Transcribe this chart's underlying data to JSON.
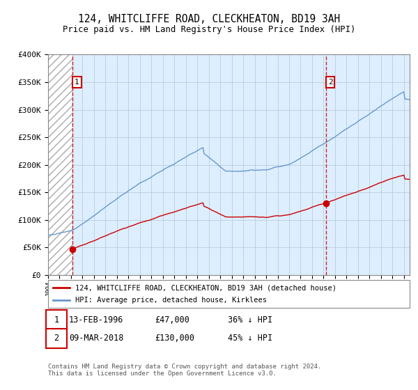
{
  "title1": "124, WHITCLIFFE ROAD, CLECKHEATON, BD19 3AH",
  "title2": "Price paid vs. HM Land Registry's House Price Index (HPI)",
  "ylim": [
    0,
    400000
  ],
  "yticks": [
    0,
    50000,
    100000,
    150000,
    200000,
    250000,
    300000,
    350000,
    400000
  ],
  "ytick_labels": [
    "£0",
    "£50K",
    "£100K",
    "£150K",
    "£200K",
    "£250K",
    "£300K",
    "£350K",
    "£400K"
  ],
  "xlim_start": 1994.0,
  "xlim_end": 2025.5,
  "sale1_x": 1996.12,
  "sale1_y": 47000,
  "sale1_label": "1",
  "sale2_x": 2018.19,
  "sale2_y": 130000,
  "sale2_label": "2",
  "hatch_end": 1996.12,
  "legend_line1": "124, WHITCLIFFE ROAD, CLECKHEATON, BD19 3AH (detached house)",
  "legend_line2": "HPI: Average price, detached house, Kirklees",
  "note1_label": "1",
  "note1_date": "13-FEB-1996",
  "note1_price": "£47,000",
  "note1_hpi": "36% ↓ HPI",
  "note2_label": "2",
  "note2_date": "09-MAR-2018",
  "note2_price": "£130,000",
  "note2_hpi": "45% ↓ HPI",
  "footer": "Contains HM Land Registry data © Crown copyright and database right 2024.\nThis data is licensed under the Open Government Licence v3.0.",
  "red_color": "#cc0000",
  "blue_color": "#6699cc",
  "bg_color": "#ddeeff",
  "grid_color": "#bbccdd"
}
